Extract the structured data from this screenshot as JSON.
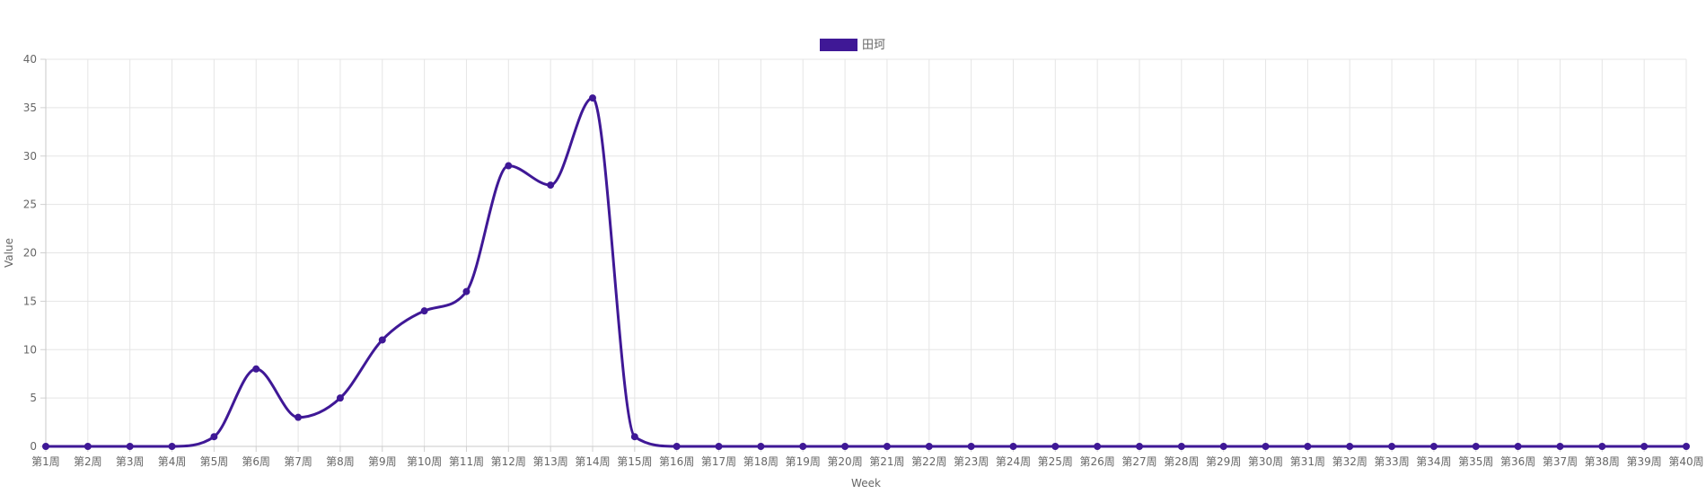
{
  "chart_data": {
    "type": "line",
    "xlabel": "Week",
    "ylabel": "Value",
    "ylim": [
      0,
      40
    ],
    "yticks": [
      0,
      5,
      10,
      15,
      20,
      25,
      30,
      35,
      40
    ],
    "grid": true,
    "legend_position": "top-center",
    "categories": [
      "第1周",
      "第2周",
      "第3周",
      "第4周",
      "第5周",
      "第6周",
      "第7周",
      "第8周",
      "第9周",
      "第10周",
      "第11周",
      "第12周",
      "第13周",
      "第14周",
      "第15周",
      "第16周",
      "第17周",
      "第18周",
      "第19周",
      "第20周",
      "第21周",
      "第22周",
      "第23周",
      "第24周",
      "第25周",
      "第26周",
      "第27周",
      "第28周",
      "第29周",
      "第30周",
      "第31周",
      "第32周",
      "第33周",
      "第34周",
      "第35周",
      "第36周",
      "第37周",
      "第38周",
      "第39周",
      "第40周"
    ],
    "series": [
      {
        "name": "田珂",
        "color": "#3f1896",
        "values": [
          0,
          0,
          0,
          0,
          1,
          8,
          3,
          5,
          11,
          14,
          16,
          29,
          27,
          36,
          1,
          0,
          0,
          0,
          0,
          0,
          0,
          0,
          0,
          0,
          0,
          0,
          0,
          0,
          0,
          0,
          0,
          0,
          0,
          0,
          0,
          0,
          0,
          0,
          0,
          0
        ]
      }
    ]
  }
}
